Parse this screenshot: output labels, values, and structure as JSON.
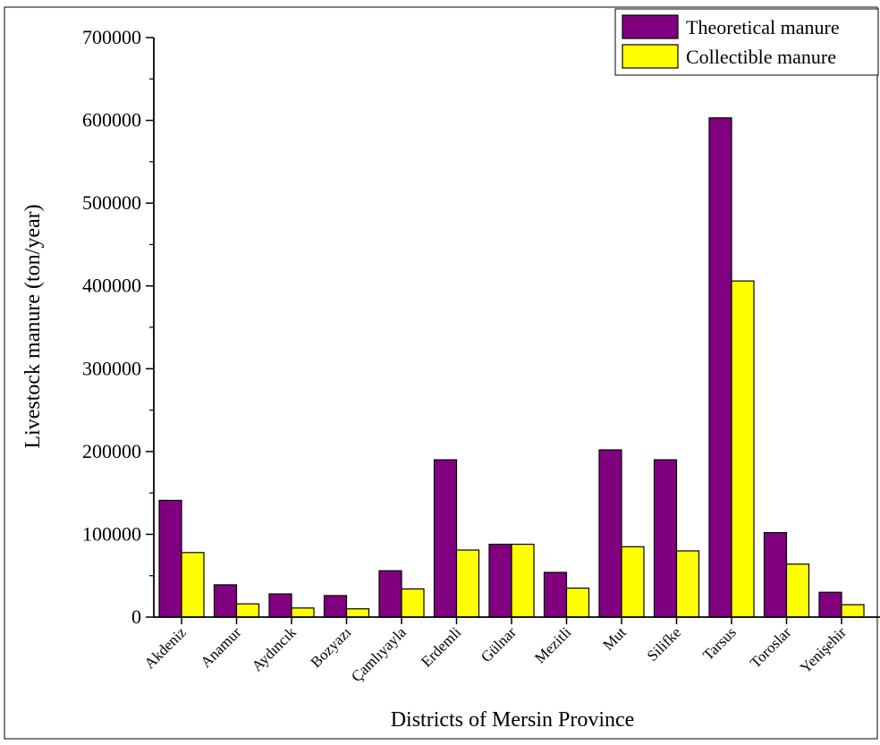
{
  "chart_data": {
    "type": "bar",
    "title": "",
    "xlabel": "Districts of Mersin Province",
    "ylabel": "Livestock manure (ton/year)",
    "ylim": [
      0,
      700000
    ],
    "yticks": [
      0,
      100000,
      200000,
      300000,
      400000,
      500000,
      600000,
      700000
    ],
    "ytick_labels": [
      "0",
      "100000",
      "200000",
      "300000",
      "400000",
      "500000",
      "600000",
      "700000"
    ],
    "grid": false,
    "legend_position": "top-right",
    "categories": [
      "Akdeniz",
      "Anamur",
      "Aydıncık",
      "Bozyazı",
      "Çamlıyayla",
      "Erdemli",
      "Gülnar",
      "Mezitli",
      "Mut",
      "Silifke",
      "Tarsus",
      "Toroslar",
      "Yenişehir"
    ],
    "series": [
      {
        "name": "Theoretical manure",
        "color": "#800080",
        "values": [
          141000,
          39000,
          28000,
          26000,
          56000,
          190000,
          88000,
          54000,
          202000,
          190000,
          603000,
          102000,
          30000
        ]
      },
      {
        "name": "Collectible manure",
        "color": "#ffff00",
        "values": [
          78000,
          16000,
          11000,
          10000,
          34000,
          81000,
          88000,
          35000,
          85000,
          80000,
          406000,
          64000,
          15000
        ]
      }
    ]
  }
}
